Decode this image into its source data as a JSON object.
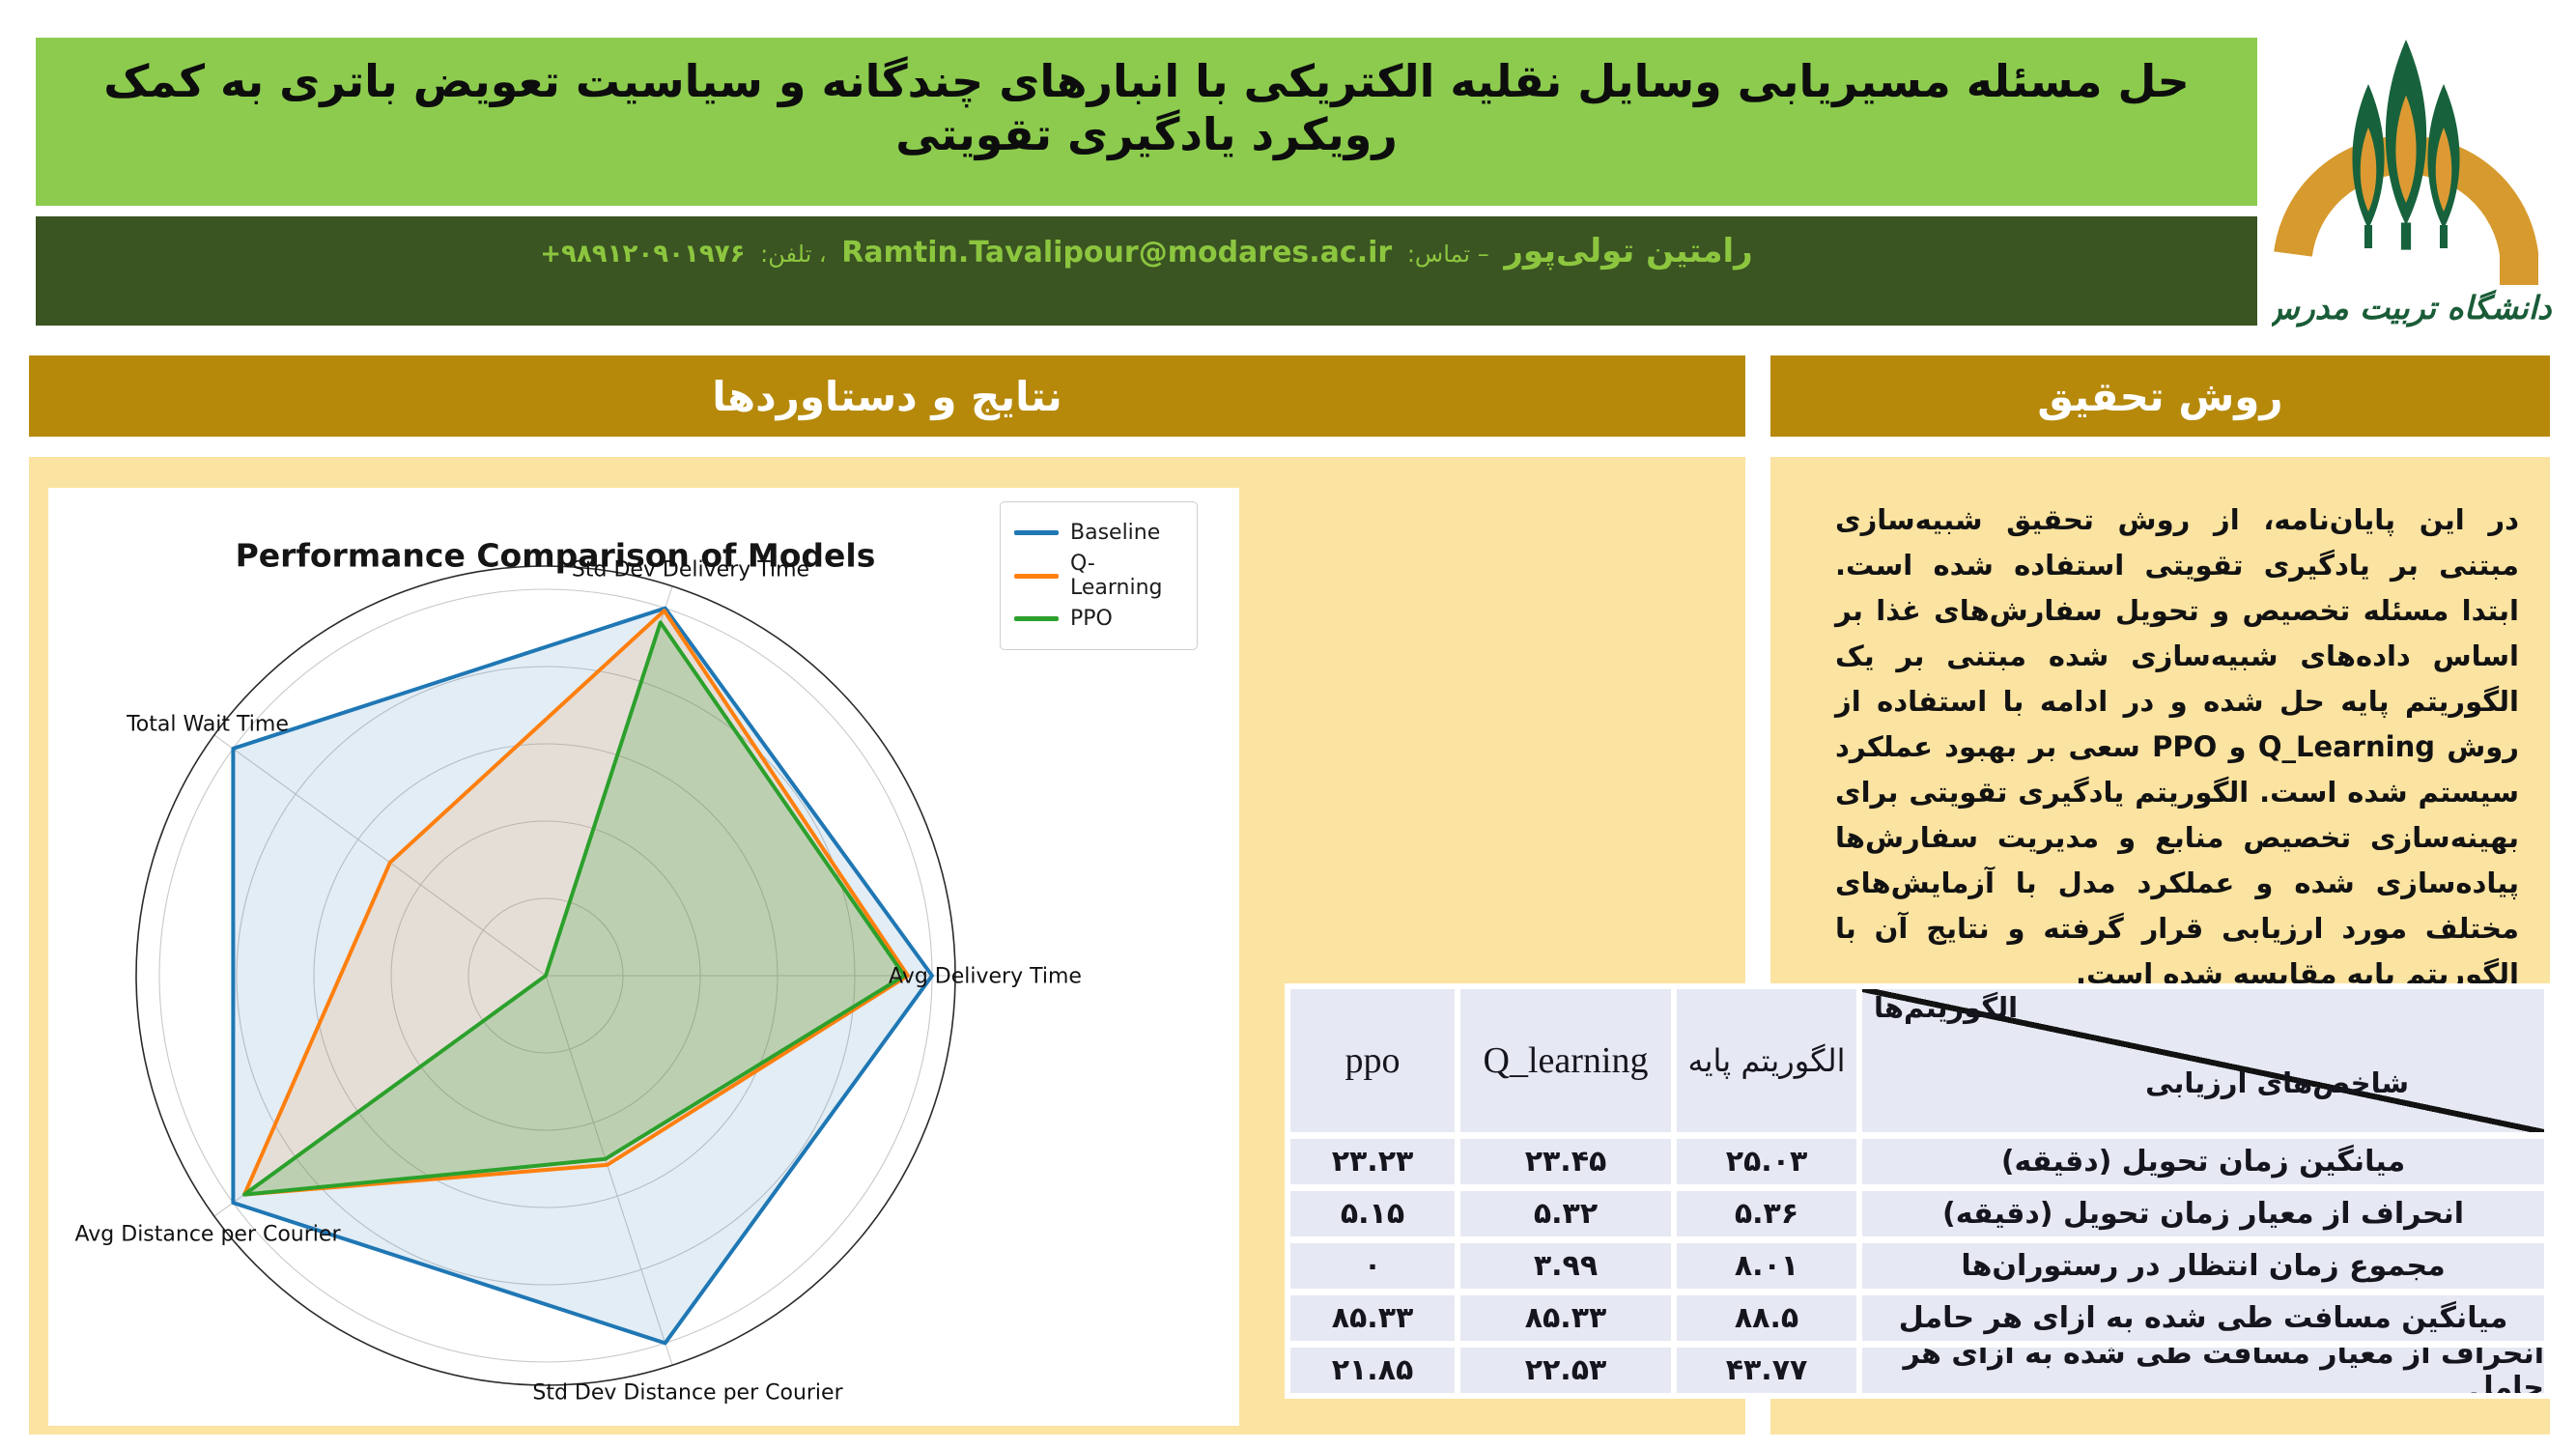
{
  "colors": {
    "band_green": "#8ccb4e",
    "band_dark_green": "#3a5422",
    "band_text_green": "#8cc63f",
    "gold": "#b6890b",
    "panel_yellow": "#fbe3a1",
    "table_cell": "#e6e9f3",
    "logo_orange": "#d79a2e",
    "logo_green": "#17623c",
    "series_baseline": "#1f77b4",
    "series_qlearning": "#ff7f0e",
    "series_ppo": "#2ca02c"
  },
  "header": {
    "title": "حل مسئله مسیریابی وسایل نقلیه الکتریکی با انبارهای چندگانه و سیاسیت تعویض باتری به کمک رویکرد یادگیری تقویتی",
    "author": "رامتین تولی‌پور",
    "contact_sep": "– تماس:",
    "email": "Ramtin.Tavalipour@modares.ac.ir",
    "phone_sep": "، تلفن:",
    "phone": "+۹۸۹۱۲۰۹۰۱۹۷۶"
  },
  "logo": {
    "university": "دانشگاه تربیت مدرس"
  },
  "sections": {
    "results": "نتایج و دستاوردها",
    "method": "روش تحقیق"
  },
  "method_text": "در این پایان‌نامه، از روش تحقیق شبیه‌سازی مبتنی بر یادگیری تقویتی استفاده شده است. ابتدا مسئله تخصیص و تحویل سفارش‌های غذا بر اساس داده‌های شبیه‌سازی شده مبتنی بر یک الگوریتم پایه حل شده و در ادامه با استفاده از روش Q_Learning و PPO سعی بر بهبود عملکرد سیستم شده است. الگوریتم یادگیری تقویتی برای بهینه‌سازی تخصیص منابع و مدیریت سفارش‌ها پیاده‌سازی شده و عملکرد مدل با آزمایش‌های مختلف مورد ارزیابی قرار گرفته و نتایج آن با الگوریتم پایه مقایسه شده است.",
  "chart_data": {
    "type": "radar",
    "title": "Performance Comparison of Models",
    "axes": [
      "Avg Delivery Time",
      "Std Dev Delivery Time",
      "Total Wait Time",
      "Avg Distance per Courier",
      "Std Dev Distance per Courier"
    ],
    "axis_angles_deg": [
      0,
      72,
      144,
      216,
      288
    ],
    "rlim": [
      0,
      1.06
    ],
    "grid_rings": [
      0.2,
      0.4,
      0.6,
      0.8,
      1.0
    ],
    "legend_position": "upper-right",
    "series": [
      {
        "name": "Baseline",
        "color": "#1f77b4",
        "fill_opacity": 0.13,
        "values": [
          1.0,
          1.0,
          1.0,
          1.0,
          1.0
        ],
        "raw": [
          25.03,
          5.36,
          8.01,
          88.5,
          43.77
        ]
      },
      {
        "name": "Q-Learning",
        "color": "#ff7f0e",
        "fill_opacity": 0.13,
        "values": [
          0.937,
          0.993,
          0.498,
          0.964,
          0.515
        ],
        "raw": [
          23.45,
          5.32,
          3.99,
          85.33,
          22.53
        ]
      },
      {
        "name": "PPO",
        "color": "#2ca02c",
        "fill_opacity": 0.22,
        "values": [
          0.928,
          0.961,
          0.0,
          0.964,
          0.499
        ],
        "raw": [
          23.23,
          5.15,
          0,
          85.33,
          21.85
        ]
      }
    ]
  },
  "table": {
    "header": {
      "algorithms": "الگوریتم‌ها",
      "metrics": "شاخص‌های ارزیابی",
      "base": "الگوریتم پایه",
      "q": "Q_learning",
      "ppo": "ppo"
    },
    "rows": [
      {
        "metric": "میانگین زمان تحویل (دقیقه)",
        "base": "۲۵.۰۳",
        "q": "۲۳.۴۵",
        "ppo": "۲۳.۲۳"
      },
      {
        "metric": "انحراف از معیار زمان تحویل (دقیقه)",
        "base": "۵.۳۶",
        "q": "۵.۳۲",
        "ppo": "۵.۱۵"
      },
      {
        "metric": "مجموع زمان انتظار در رستوران‌ها",
        "base": "۸.۰۱",
        "q": "۳.۹۹",
        "ppo": "۰"
      },
      {
        "metric": "میانگین مسافت طی شده به ازای هر حامل",
        "base": "۸۸.۵",
        "q": "۸۵.۳۳",
        "ppo": "۸۵.۳۳"
      },
      {
        "metric": "انحراف از معیار مسافت طی شده به ازای هر حامل",
        "base": "۴۳.۷۷",
        "q": "۲۲.۵۳",
        "ppo": "۲۱.۸۵"
      }
    ]
  }
}
